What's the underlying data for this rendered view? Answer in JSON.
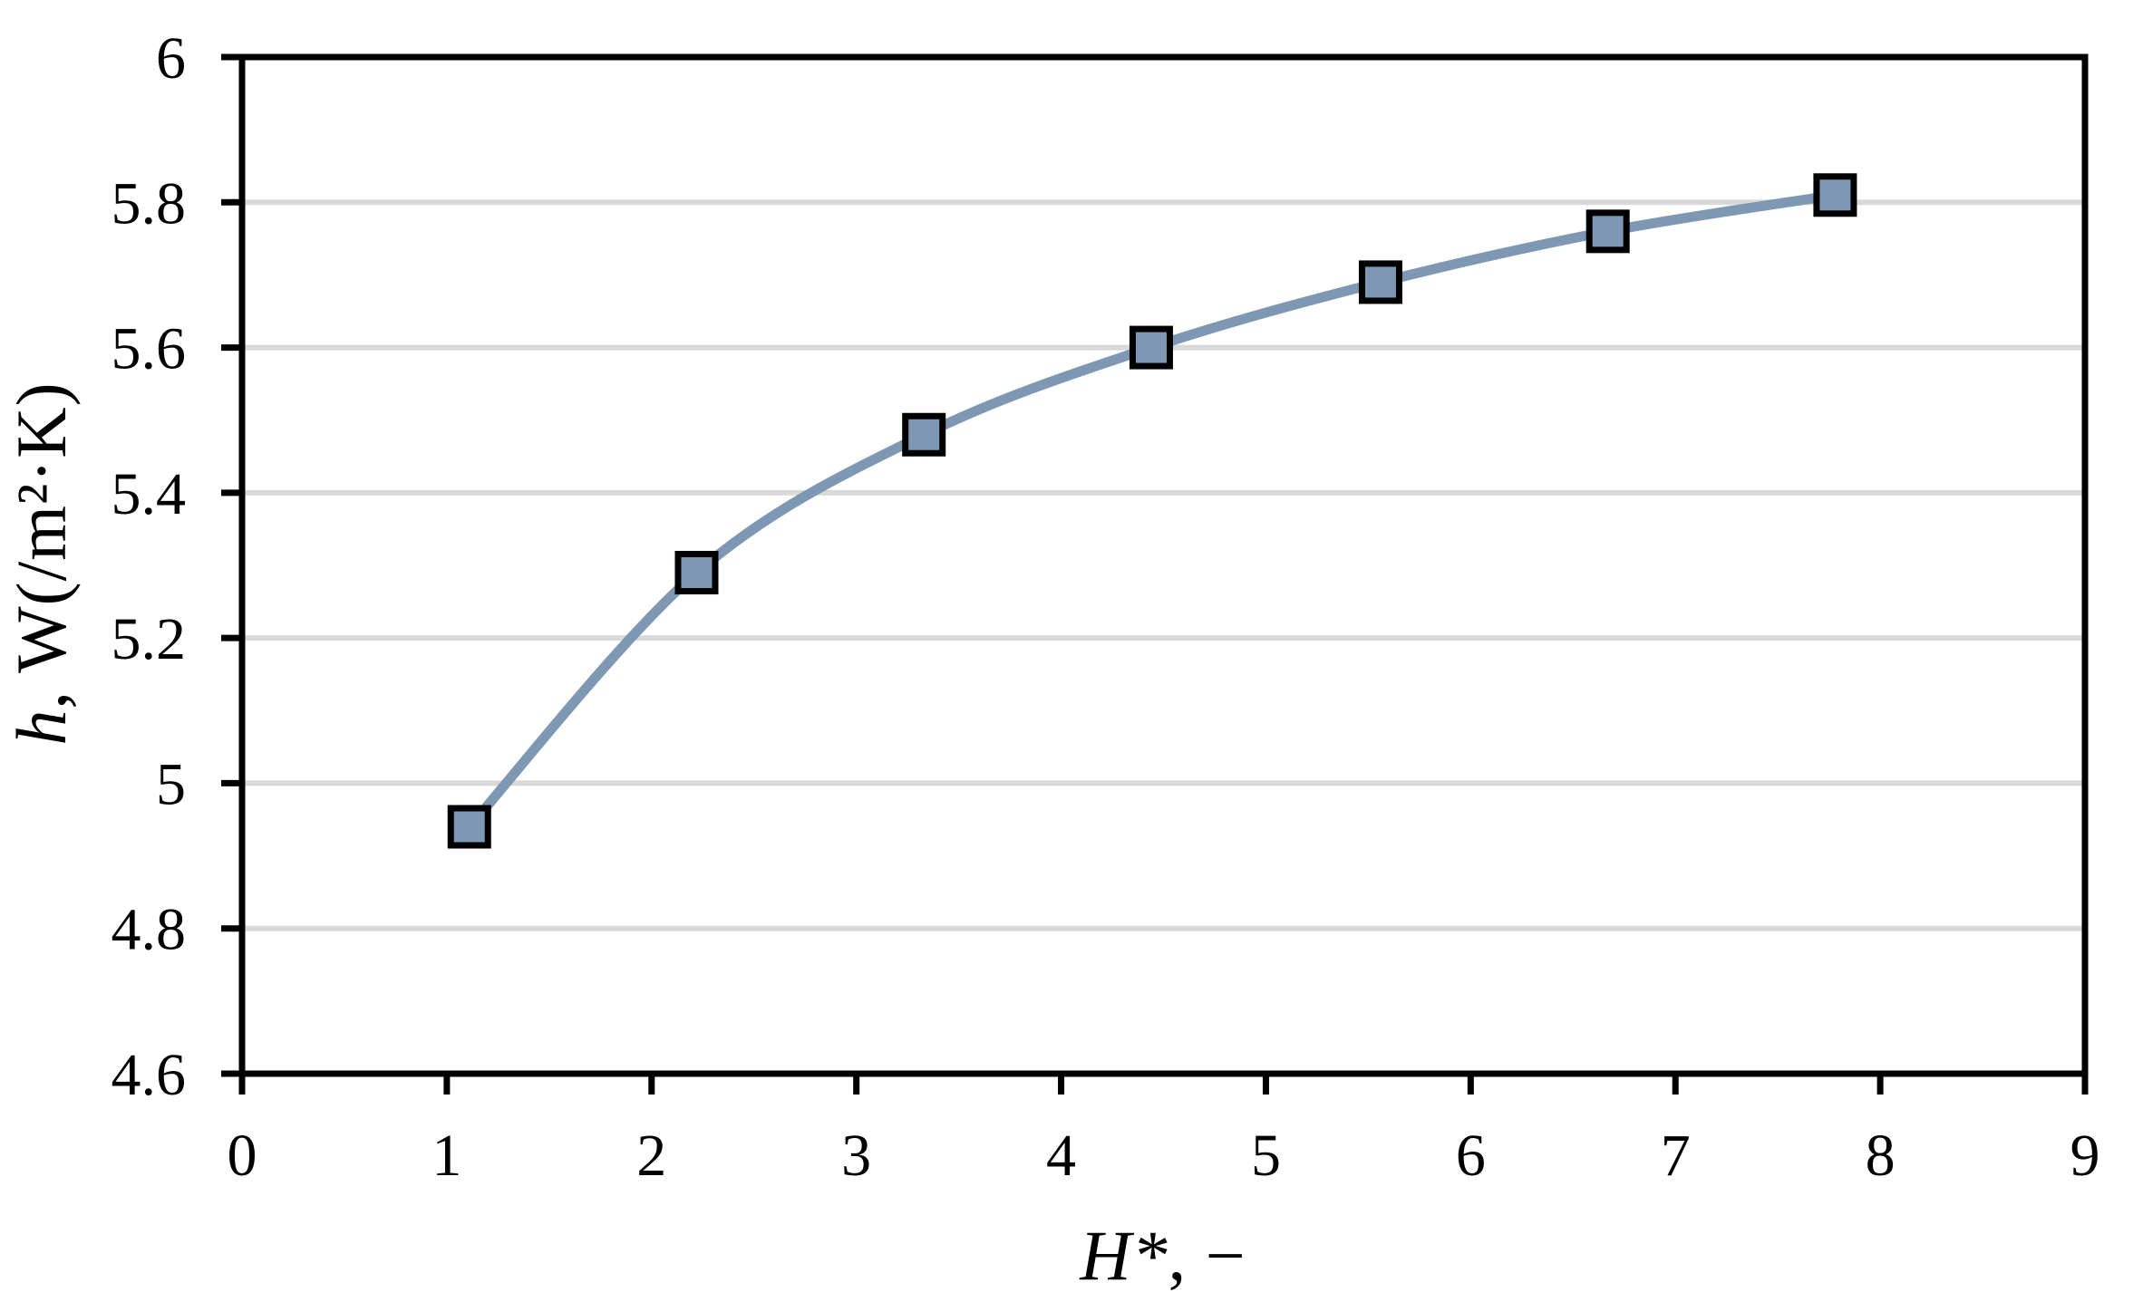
{
  "chart_data": {
    "type": "line",
    "title": "",
    "xlabel": "H*, −",
    "xlabel_var": "H*",
    "xlabel_rest": ", −",
    "ylabel": "h, W(/m²·K)",
    "ylabel_var": "h",
    "ylabel_rest": ", W(/m²·K)",
    "x": [
      1.11,
      2.22,
      3.33,
      4.44,
      5.56,
      6.67,
      7.78
    ],
    "y": [
      4.94,
      5.29,
      5.48,
      5.6,
      5.69,
      5.76,
      5.81
    ],
    "xlim": [
      0,
      9
    ],
    "ylim": [
      4.6,
      6
    ],
    "x_ticks": [
      0,
      1,
      2,
      3,
      4,
      5,
      6,
      7,
      8,
      9
    ],
    "x_tick_labels": [
      "0",
      "1",
      "2",
      "3",
      "4",
      "5",
      "6",
      "7",
      "8",
      "9"
    ],
    "y_ticks": [
      4.6,
      4.8,
      5,
      5.2,
      5.4,
      5.6,
      5.8,
      6
    ],
    "y_tick_labels": [
      "4.6",
      "4.8",
      "5",
      "5.2",
      "5.4",
      "5.6",
      "5.8",
      "6"
    ],
    "grid": "horizontal-only",
    "legend": "none",
    "marker": "square",
    "line_style": "smooth",
    "colors": {
      "line": "#7E98B4",
      "marker_fill": "#7E98B4",
      "marker_border": "#000000",
      "grid": "#D9D9D9",
      "axis": "#000000",
      "text": "#000000",
      "background": "#FFFFFF"
    }
  }
}
